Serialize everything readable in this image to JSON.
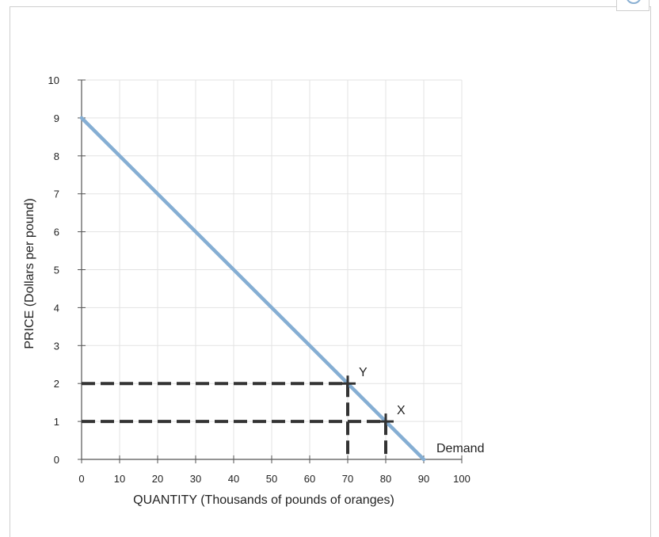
{
  "chart_data": {
    "type": "line",
    "xlabel": "QUANTITY (Thousands of pounds of oranges)",
    "ylabel": "PRICE (Dollars per pound)",
    "xlim": [
      0,
      100
    ],
    "ylim": [
      0,
      10
    ],
    "x_ticks": [
      0,
      10,
      20,
      30,
      40,
      50,
      60,
      70,
      80,
      90,
      100
    ],
    "y_ticks": [
      0,
      1,
      2,
      3,
      4,
      5,
      6,
      7,
      8,
      9,
      10
    ],
    "grid": true,
    "series": [
      {
        "name": "Demand",
        "color": "#85aed3",
        "x": [
          0,
          90
        ],
        "y": [
          9,
          0
        ]
      }
    ],
    "points": [
      {
        "label": "Y",
        "x": 70,
        "y": 2
      },
      {
        "label": "X",
        "x": 80,
        "y": 1
      }
    ],
    "guide_color": "#333333"
  }
}
